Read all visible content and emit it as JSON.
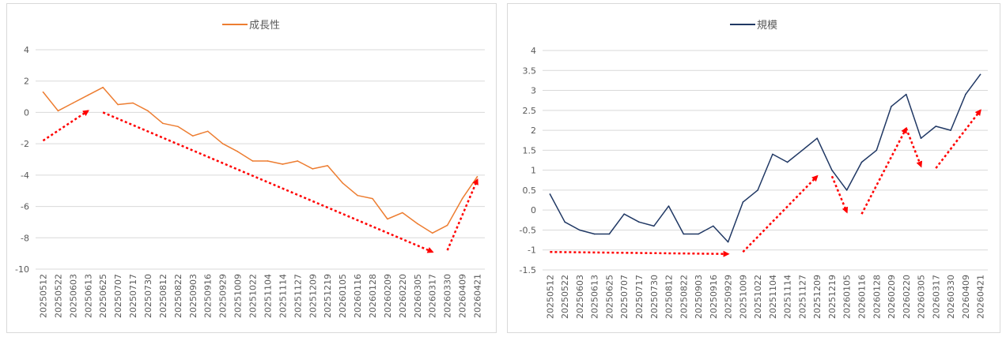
{
  "chart_data": [
    {
      "type": "line",
      "legend_position": "top",
      "grid": true,
      "color": "#ed7d31",
      "ylim": [
        -10,
        4
      ],
      "yticks": [
        4,
        2,
        0,
        -2,
        -4,
        -6,
        -8,
        -10
      ],
      "x": [
        "20250512",
        "20250522",
        "20250603",
        "20250613",
        "20250625",
        "20250707",
        "20250717",
        "20250730",
        "20250812",
        "20250822",
        "20250903",
        "20250916",
        "20250929",
        "20251009",
        "20251022",
        "20251104",
        "20251114",
        "20251127",
        "20251209",
        "20251219",
        "20260105",
        "20260116",
        "20260128",
        "20260209",
        "20260220",
        "20260305",
        "20260317",
        "20260330",
        "20260409",
        "20260421"
      ],
      "series": [
        {
          "name": "成長性",
          "values": [
            1.3,
            0.1,
            0.6,
            1.1,
            1.6,
            0.5,
            0.6,
            0.1,
            -0.7,
            -0.9,
            -1.5,
            -1.2,
            -2.0,
            -2.5,
            -3.1,
            -3.1,
            -3.3,
            -3.1,
            -3.6,
            -3.4,
            -4.5,
            -5.3,
            -5.5,
            -6.8,
            -6.4,
            -7.1,
            -7.7,
            -7.2,
            -5.5,
            -4.1
          ]
        }
      ],
      "arrows": [
        {
          "from": [
            "20250512",
            -1.8
          ],
          "to": [
            "20250613",
            0.1
          ]
        },
        {
          "from": [
            "20250625",
            0.0
          ],
          "to": [
            "20260317",
            -8.9
          ]
        },
        {
          "from": [
            "20260330",
            -8.8
          ],
          "to": [
            "20260421",
            -4.3
          ]
        }
      ]
    },
    {
      "type": "line",
      "legend_position": "top",
      "grid": true,
      "color": "#203864",
      "ylim": [
        -1.5,
        4
      ],
      "yticks": [
        4,
        3.5,
        3,
        2.5,
        2,
        1.5,
        1,
        0.5,
        0,
        -0.5,
        -1,
        -1.5
      ],
      "x": [
        "20250512",
        "20250522",
        "20250603",
        "20250613",
        "20250625",
        "20250707",
        "20250717",
        "20250730",
        "20250812",
        "20250822",
        "20250903",
        "20250916",
        "20250929",
        "20251009",
        "20251022",
        "20251104",
        "20251114",
        "20251127",
        "20251209",
        "20251219",
        "20260105",
        "20260116",
        "20260128",
        "20260209",
        "20260220",
        "20260305",
        "20260317",
        "20260330",
        "20260409",
        "20260421"
      ],
      "series": [
        {
          "name": "規模",
          "values": [
            0.4,
            -0.3,
            -0.5,
            -0.6,
            -0.6,
            -0.1,
            -0.3,
            -0.4,
            0.1,
            -0.6,
            -0.6,
            -0.4,
            -0.8,
            0.2,
            0.5,
            1.4,
            1.2,
            1.5,
            1.8,
            1.0,
            0.5,
            1.2,
            1.5,
            2.6,
            2.9,
            1.8,
            2.1,
            2.0,
            2.9,
            3.4
          ]
        }
      ],
      "arrows": [
        {
          "from": [
            "20250512",
            -1.05
          ],
          "to": [
            "20250929",
            -1.1
          ]
        },
        {
          "from": [
            "20251009",
            -1.05
          ],
          "to": [
            "20251209",
            0.85
          ]
        },
        {
          "from": [
            "20251219",
            0.85
          ],
          "to": [
            "20260105",
            -0.05
          ]
        },
        {
          "from": [
            "20260116",
            -0.1
          ],
          "to": [
            "20260220",
            2.05
          ]
        },
        {
          "from": [
            "20260220",
            2.05
          ],
          "to": [
            "20260305",
            1.1
          ]
        },
        {
          "from": [
            "20260317",
            1.05
          ],
          "to": [
            "20260421",
            2.5
          ]
        }
      ]
    }
  ]
}
